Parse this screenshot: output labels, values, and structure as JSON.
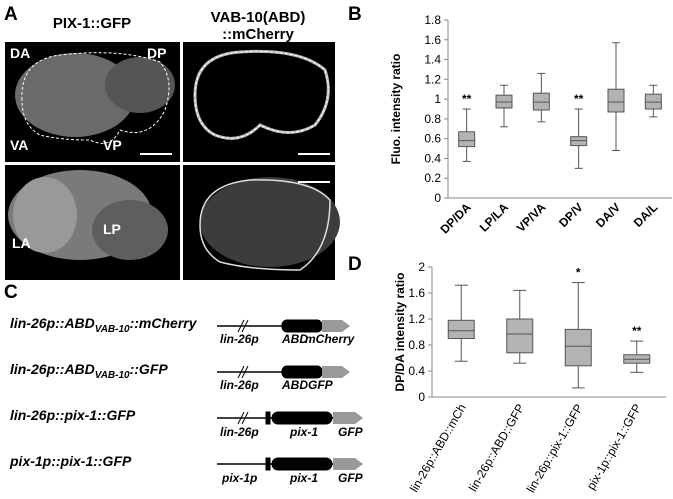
{
  "panels": {
    "a": "A",
    "b": "B",
    "c": "C",
    "d": "D"
  },
  "images": {
    "col1_title": "PIX-1::GFP",
    "col2_title_1": "VAB-10(ABD)",
    "col2_title_2": "::mCherry",
    "labels": {
      "da": "DA",
      "dp": "DP",
      "va": "VA",
      "vp": "VP",
      "la": "LA",
      "lp": "LP"
    }
  },
  "constructs": [
    {
      "name": {
        "prefix": "lin-26p::ABD",
        "sub": "VAB-10",
        "suffix": "::mCherry"
      },
      "parts": [
        "lin-26p",
        "ABD",
        "mCherry"
      ]
    },
    {
      "name": {
        "prefix": "lin-26p::ABD",
        "sub": "VAB-10",
        "suffix": "::GFP"
      },
      "parts": [
        "lin-26p",
        "ABD",
        "GFP"
      ]
    },
    {
      "name": {
        "prefix": "lin-26p::pix-1::GFP"
      },
      "parts": [
        "lin-26p",
        "pix-1",
        "GFP"
      ]
    },
    {
      "name": {
        "prefix": "pix-1p::pix-1::GFP"
      },
      "parts": [
        "pix-1p",
        "pix-1",
        "GFP"
      ]
    }
  ],
  "chart_data": [
    {
      "type": "box",
      "ylabel": "Fluo. intensity ratio",
      "categories": [
        "DP/DA",
        "LP/LA",
        "VP/VA",
        "DP/V",
        "DA/V",
        "DA/L"
      ],
      "low": [
        0.37,
        0.72,
        0.77,
        0.3,
        0.48,
        0.82
      ],
      "q1": [
        0.52,
        0.91,
        0.89,
        0.53,
        0.87,
        0.9
      ],
      "median": [
        0.58,
        0.97,
        0.97,
        0.58,
        0.97,
        0.97
      ],
      "q3": [
        0.67,
        1.04,
        1.06,
        0.62,
        1.1,
        1.05
      ],
      "high": [
        0.9,
        1.14,
        1.26,
        0.9,
        1.57,
        1.14
      ],
      "significance": [
        "**",
        null,
        null,
        "**",
        null,
        null
      ],
      "color": "#b3b3b3",
      "grid": false,
      "ylim": [
        0,
        1.8
      ],
      "yticks": [
        0,
        0.2,
        0.4,
        0.6,
        0.8,
        1,
        1.2,
        1.4,
        1.6,
        1.8
      ]
    },
    {
      "type": "box",
      "ylabel": "DP/DA intensity ratio",
      "categories": [
        "lin-26p::ABD::mCh",
        "lin-26p::ABD::GFP",
        "lin-26p::pix-1::GFP",
        "pix-1p::pix-1::GFP"
      ],
      "low": [
        0.55,
        0.52,
        0.14,
        0.38
      ],
      "q1": [
        0.9,
        0.68,
        0.48,
        0.52
      ],
      "median": [
        1.02,
        0.97,
        0.78,
        0.58
      ],
      "q3": [
        1.18,
        1.2,
        1.04,
        0.65
      ],
      "high": [
        1.72,
        1.64,
        1.76,
        0.86
      ],
      "significance": [
        null,
        null,
        "*",
        "**"
      ],
      "color": "#b3b3b3",
      "grid": false,
      "ylim": [
        0,
        2
      ],
      "yticks": [
        0,
        0.4,
        0.8,
        1.2,
        1.6,
        2
      ]
    }
  ]
}
